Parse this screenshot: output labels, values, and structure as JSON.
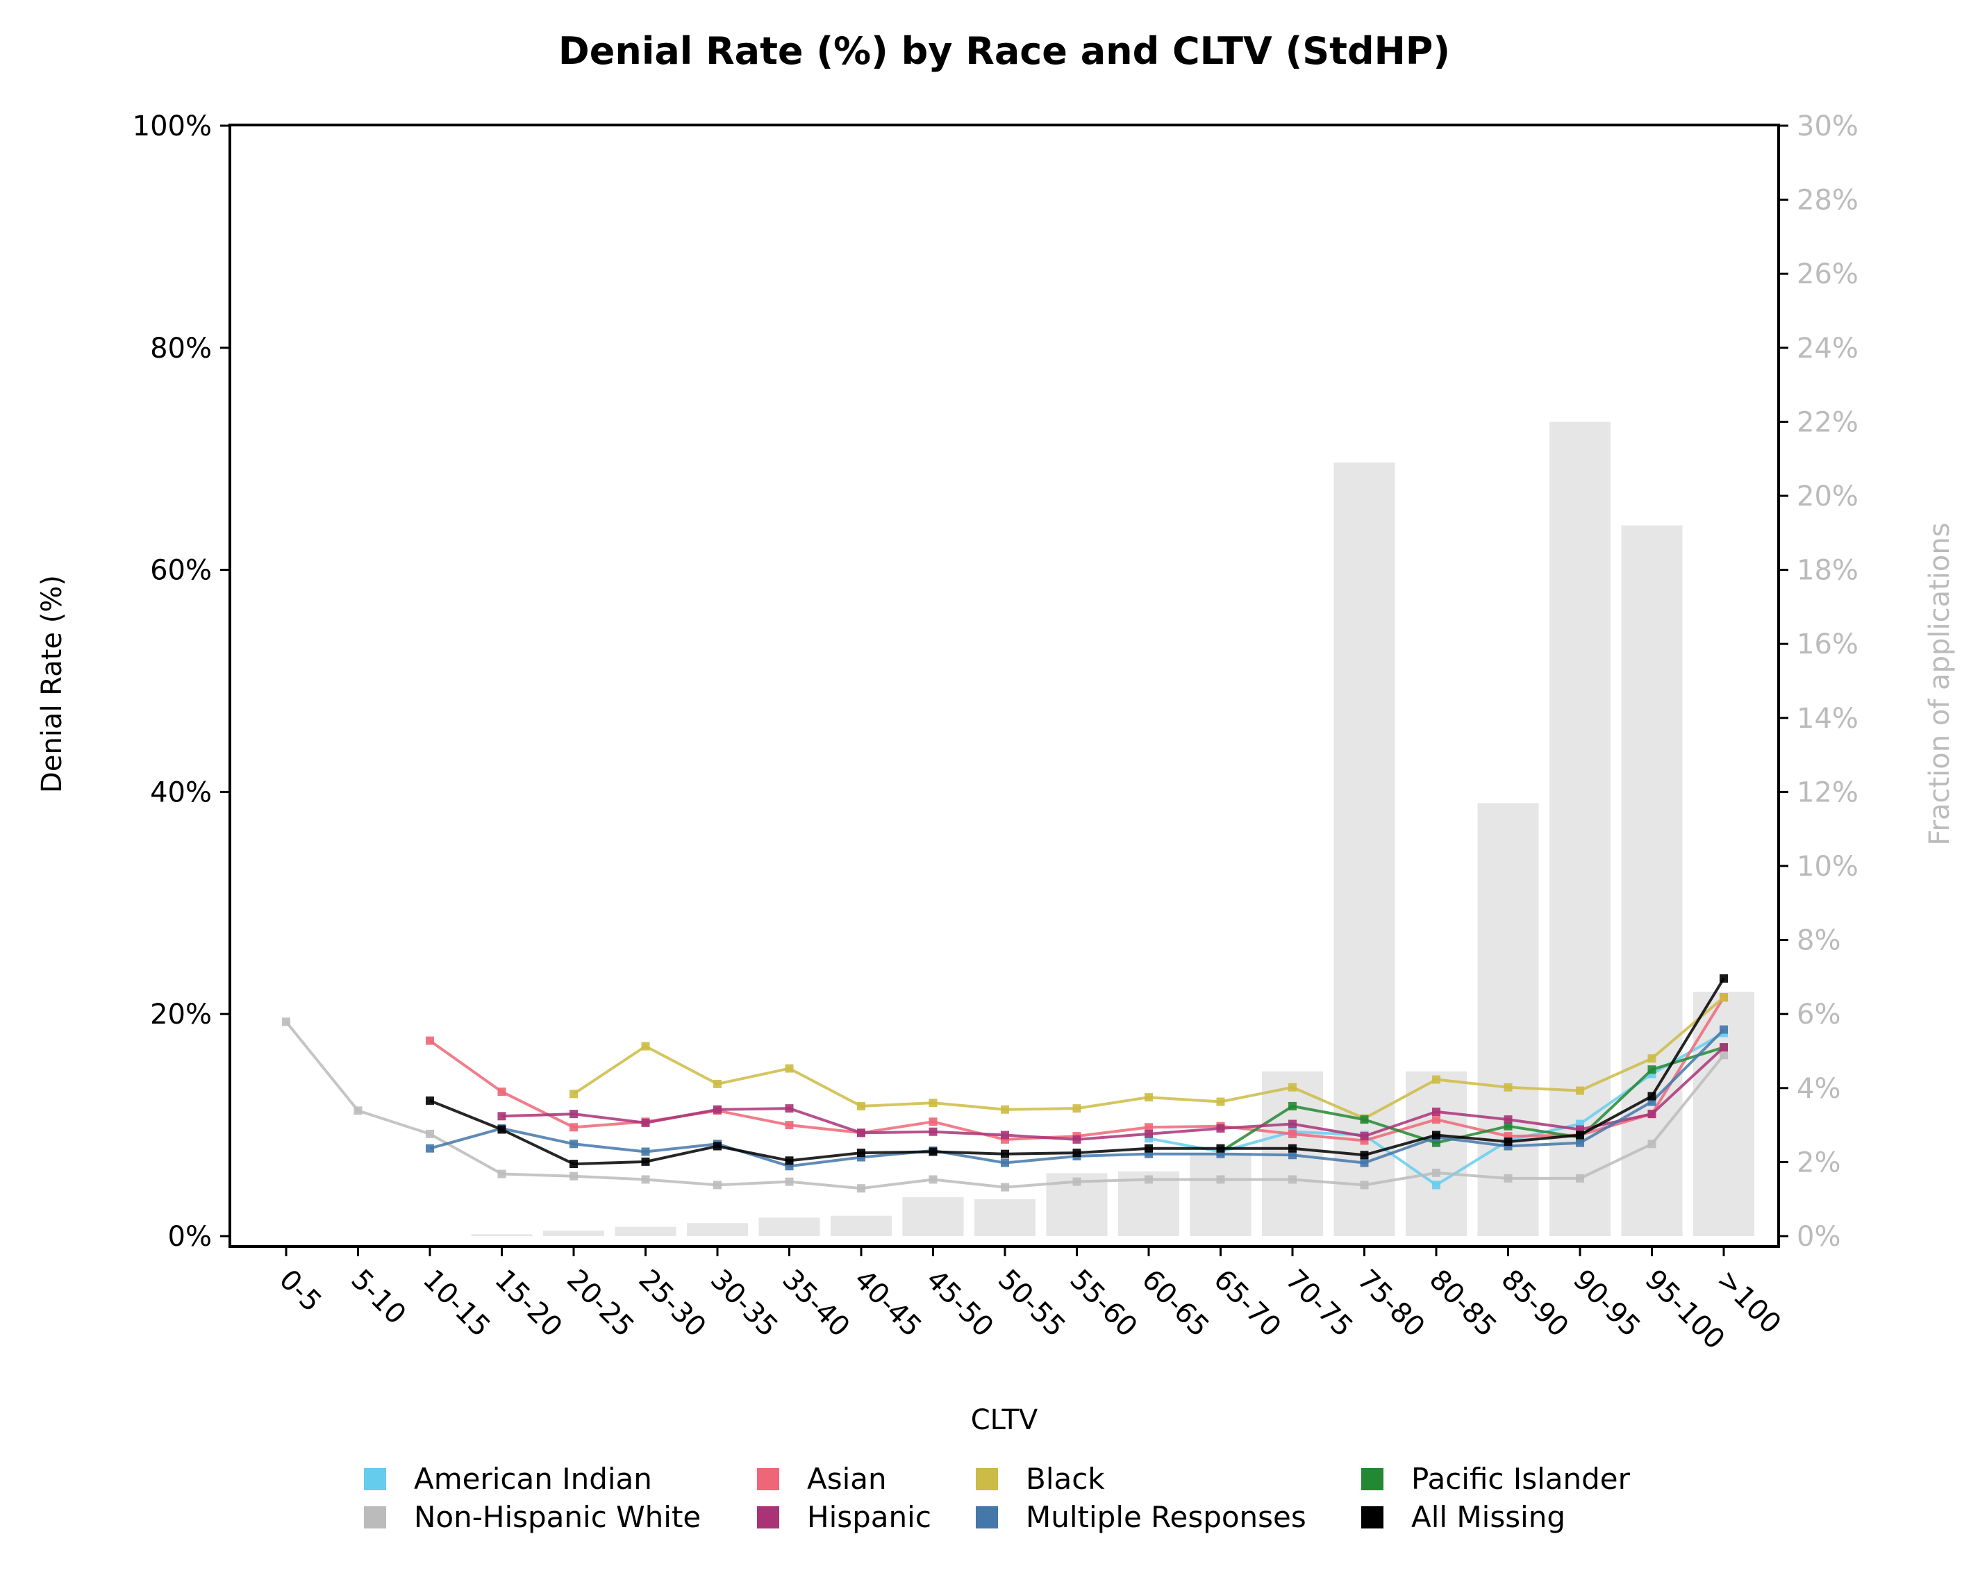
{
  "chart_data": {
    "type": "line",
    "title": "Denial Rate (%) by Race and CLTV (StdHP)",
    "xlabel": "CLTV",
    "ylabel": "Denial Rate (%)",
    "y2label": "Fraction of applications",
    "ylim": [
      0,
      100
    ],
    "y2lim": [
      0,
      30
    ],
    "yticks": [
      "0%",
      "20%",
      "40%",
      "60%",
      "80%",
      "100%"
    ],
    "y2ticks": [
      "0%",
      "2%",
      "4%",
      "6%",
      "8%",
      "10%",
      "12%",
      "14%",
      "16%",
      "18%",
      "20%",
      "22%",
      "24%",
      "26%",
      "28%",
      "30%"
    ],
    "categories": [
      "0-5",
      "5-10",
      "10-15",
      "15-20",
      "20-25",
      "25-30",
      "30-35",
      "35-40",
      "40-45",
      "45-50",
      "50-55",
      "55-60",
      "60-65",
      "65-70",
      "70-75",
      "75-80",
      "80-85",
      "85-90",
      "90-95",
      "95-100",
      ">100"
    ],
    "fraction_of_applications": [
      0.0,
      0.0,
      0.0,
      0.05,
      0.15,
      0.25,
      0.35,
      0.5,
      0.55,
      1.05,
      1.0,
      1.7,
      1.75,
      2.25,
      4.45,
      20.9,
      4.45,
      11.7,
      22.0,
      19.2,
      6.6
    ],
    "legend_location": "bottom",
    "series": [
      {
        "name": "American Indian",
        "color": "#66ccee",
        "values": [
          null,
          null,
          null,
          null,
          null,
          null,
          null,
          null,
          null,
          null,
          null,
          null,
          8.8,
          7.6,
          9.4,
          9.1,
          4.6,
          8.6,
          10.1,
          14.6,
          18.3
        ]
      },
      {
        "name": "Asian",
        "color": "#ee6677",
        "values": [
          null,
          null,
          17.6,
          13.0,
          9.8,
          10.3,
          11.3,
          10.0,
          9.3,
          10.3,
          8.7,
          9.0,
          9.8,
          9.9,
          9.2,
          8.6,
          10.5,
          9.0,
          9.1,
          11.0,
          21.5
        ]
      },
      {
        "name": "Black",
        "color": "#ccbb44",
        "values": [
          null,
          null,
          null,
          null,
          12.8,
          17.1,
          13.7,
          15.1,
          11.7,
          12.0,
          11.4,
          11.5,
          12.5,
          12.1,
          13.4,
          10.6,
          14.1,
          13.4,
          13.1,
          16.0,
          21.5
        ]
      },
      {
        "name": "Pacific Islander",
        "color": "#228833",
        "values": [
          null,
          null,
          null,
          null,
          null,
          null,
          null,
          null,
          null,
          null,
          null,
          null,
          null,
          7.6,
          11.7,
          10.5,
          8.4,
          9.9,
          8.9,
          15.0,
          17.0
        ]
      },
      {
        "name": "Non-Hispanic White",
        "color": "#bbbbbb",
        "values": [
          19.3,
          11.3,
          9.2,
          5.6,
          5.4,
          5.1,
          4.6,
          4.9,
          4.3,
          5.1,
          4.4,
          4.9,
          5.1,
          5.1,
          5.1,
          4.6,
          5.7,
          5.2,
          5.2,
          8.3,
          16.3
        ]
      },
      {
        "name": "Hispanic",
        "color": "#aa3377",
        "values": [
          null,
          null,
          null,
          10.8,
          11.0,
          10.2,
          11.4,
          11.5,
          9.3,
          9.4,
          9.1,
          8.7,
          9.2,
          9.7,
          10.1,
          9.0,
          11.2,
          10.5,
          9.6,
          11.0,
          17.0
        ]
      },
      {
        "name": "Multiple Responses",
        "color": "#4477aa",
        "values": [
          null,
          null,
          7.9,
          9.7,
          8.3,
          7.6,
          8.3,
          6.3,
          7.1,
          7.7,
          6.6,
          7.2,
          7.4,
          7.4,
          7.3,
          6.6,
          8.9,
          8.1,
          8.4,
          12.1,
          18.6
        ]
      },
      {
        "name": "All Missing",
        "color": "#000000",
        "values": [
          null,
          null,
          12.2,
          9.6,
          6.5,
          6.7,
          8.1,
          6.8,
          7.5,
          7.6,
          7.4,
          7.5,
          7.9,
          7.9,
          7.9,
          7.3,
          9.1,
          8.5,
          9.1,
          12.6,
          23.2
        ]
      }
    ]
  }
}
